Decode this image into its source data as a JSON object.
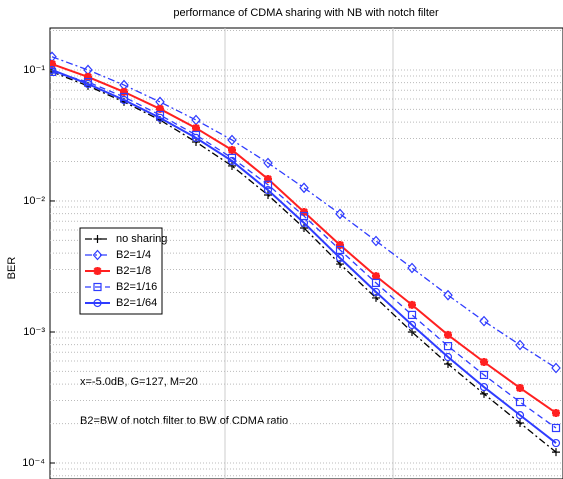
{
  "chart_data": {
    "type": "line",
    "title": "performance of CDMA sharing with NB with notch filter",
    "ylabel": "BER",
    "annotations": [
      "x=-5.0dB, G=127, M=20",
      "B2=BW of notch filter to BW of CDMA ratio"
    ],
    "categories": [
      null,
      null,
      null,
      null,
      null,
      null,
      null,
      null,
      null,
      null,
      null,
      null,
      null,
      null,
      null
    ],
    "log_y": true,
    "grid": true,
    "legend": "center left",
    "ylim": [
      0.209,
      7.55e-05
    ],
    "yticks": [
      {
        "value": 0.1,
        "label": "10⁻¹"
      },
      {
        "value": 0.01,
        "label": "10⁻²"
      },
      {
        "value": 0.001,
        "label": "10⁻³"
      },
      {
        "value": 0.0001,
        "label": "10⁻⁴"
      }
    ],
    "series": [
      {
        "name": "no sharing",
        "color": "#000000",
        "dash": "dashdot",
        "marker": "plus",
        "values": [
          0.0966,
          0.0755,
          0.057,
          0.0415,
          0.0282,
          0.0185,
          0.0111,
          0.00622,
          0.0033,
          0.00182,
          0.001,
          0.00057,
          0.000337,
          0.000202,
          0.000121
        ]
      },
      {
        "name": "B2=1/4",
        "color": "#2f3cff",
        "dash": "dashdot",
        "marker": "diamond",
        "values": [
          0.126,
          0.1,
          0.0767,
          0.057,
          0.0415,
          0.0292,
          0.0195,
          0.0126,
          0.00796,
          0.00495,
          0.00308,
          0.00191,
          0.00121,
          0.000796,
          0.000531
        ]
      },
      {
        "name": "B2=1/8",
        "color": "#ff2020",
        "dash": "solid",
        "marker": "star",
        "values": [
          0.111,
          0.0885,
          0.068,
          0.0504,
          0.036,
          0.0245,
          0.0147,
          0.00824,
          0.00461,
          0.00267,
          0.00161,
          0.00095,
          0.00059,
          0.000374,
          0.000241
        ]
      },
      {
        "name": "B2=1/16",
        "color": "#2f3cff",
        "dash": "dashed",
        "marker": "square",
        "values": [
          0.0966,
          0.0809,
          0.0622,
          0.0453,
          0.0319,
          0.0213,
          0.0133,
          0.00767,
          0.00423,
          0.00237,
          0.00135,
          0.00078,
          0.00047,
          0.000292,
          0.000185
        ]
      },
      {
        "name": "B2=1/64",
        "color": "#2f3cff",
        "dash": "solid",
        "marker": "circle",
        "values": [
          0.1,
          0.0782,
          0.059,
          0.0431,
          0.0303,
          0.0202,
          0.0121,
          0.0068,
          0.00367,
          0.00202,
          0.00113,
          0.000644,
          0.00038,
          0.000232,
          0.000142
        ]
      }
    ]
  }
}
